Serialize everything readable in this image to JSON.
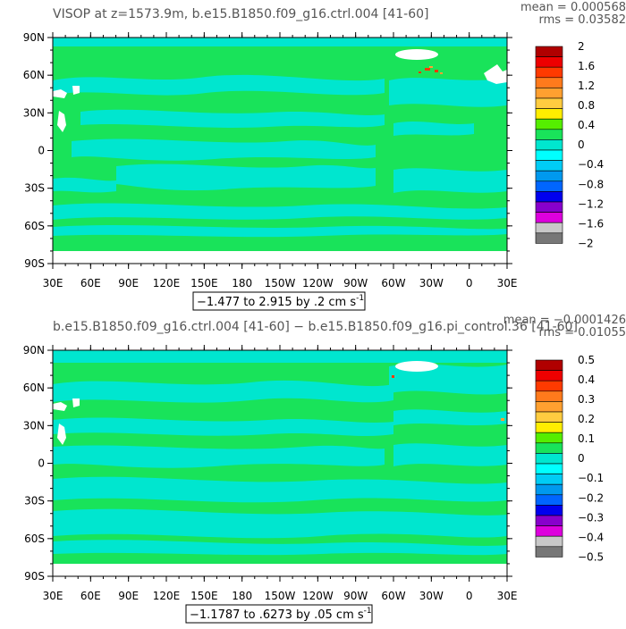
{
  "colors": {
    "ocean_base": "#19e35a",
    "cyan": "#00e6cf",
    "land": "#ffffff",
    "frame": "#000000",
    "header_text": "#555555"
  },
  "chart_data": [
    {
      "type": "heatmap",
      "title": "VISOP at z=1573.9m, b.e15.B1850.f09_g16.ctrl.004 [41-60]",
      "stats": [
        "mean = 0.000568",
        "rms = 0.03582"
      ],
      "range_label": "−1.477 to 2.915 by .2 cm s",
      "range_sup": "-1",
      "y_ticks": [
        "90N",
        "60N",
        "30N",
        "0",
        "30S",
        "60S",
        "90S"
      ],
      "x_ticks": [
        "30E",
        "60E",
        "90E",
        "120E",
        "150E",
        "180",
        "150W",
        "120W",
        "90W",
        "60W",
        "30W",
        "0",
        "30E"
      ],
      "colorbar": {
        "labels": [
          "2",
          "1.6",
          "1.2",
          "0.8",
          "0.4",
          "0",
          "−0.4",
          "−0.8",
          "−1.2",
          "−1.6",
          "−2"
        ],
        "colors": [
          "#b00000",
          "#ee0000",
          "#ff3a00",
          "#ff7a1c",
          "#ffa030",
          "#ffcc40",
          "#ffee00",
          "#55ee00",
          "#19e35a",
          "#00e6cf",
          "#00ffff",
          "#00ccf5",
          "#0099ee",
          "#0066ff",
          "#0000ee",
          "#8800cc",
          "#dd00dd",
          "#c8c8c8",
          "#777777"
        ]
      }
    },
    {
      "type": "heatmap",
      "title": "b.e15.B1850.f09_g16.ctrl.004 [41-60] − b.e15.B1850.f09_g16.pi_control.36 [41-60]",
      "stats": [
        "mean = −0.0001426",
        "rms = 0.01055"
      ],
      "range_label": "−1.1787 to .6273 by .05 cm s",
      "range_sup": "-1",
      "y_ticks": [
        "90N",
        "60N",
        "30N",
        "0",
        "30S",
        "60S",
        "90S"
      ],
      "x_ticks": [
        "30E",
        "60E",
        "90E",
        "120E",
        "150E",
        "180",
        "150W",
        "120W",
        "90W",
        "60W",
        "30W",
        "0",
        "30E"
      ],
      "colorbar": {
        "labels": [
          "0.5",
          "0.4",
          "0.3",
          "0.2",
          "0.1",
          "0",
          "−0.1",
          "−0.2",
          "−0.3",
          "−0.4",
          "−0.5"
        ],
        "colors": [
          "#b00000",
          "#ee0000",
          "#ff3a00",
          "#ff7a1c",
          "#ffa030",
          "#ffcc40",
          "#ffee00",
          "#55ee00",
          "#19e35a",
          "#00e6cf",
          "#00ffff",
          "#00ccf5",
          "#0099ee",
          "#0066ff",
          "#0000ee",
          "#8800cc",
          "#dd00dd",
          "#c8c8c8",
          "#777777"
        ]
      }
    }
  ]
}
